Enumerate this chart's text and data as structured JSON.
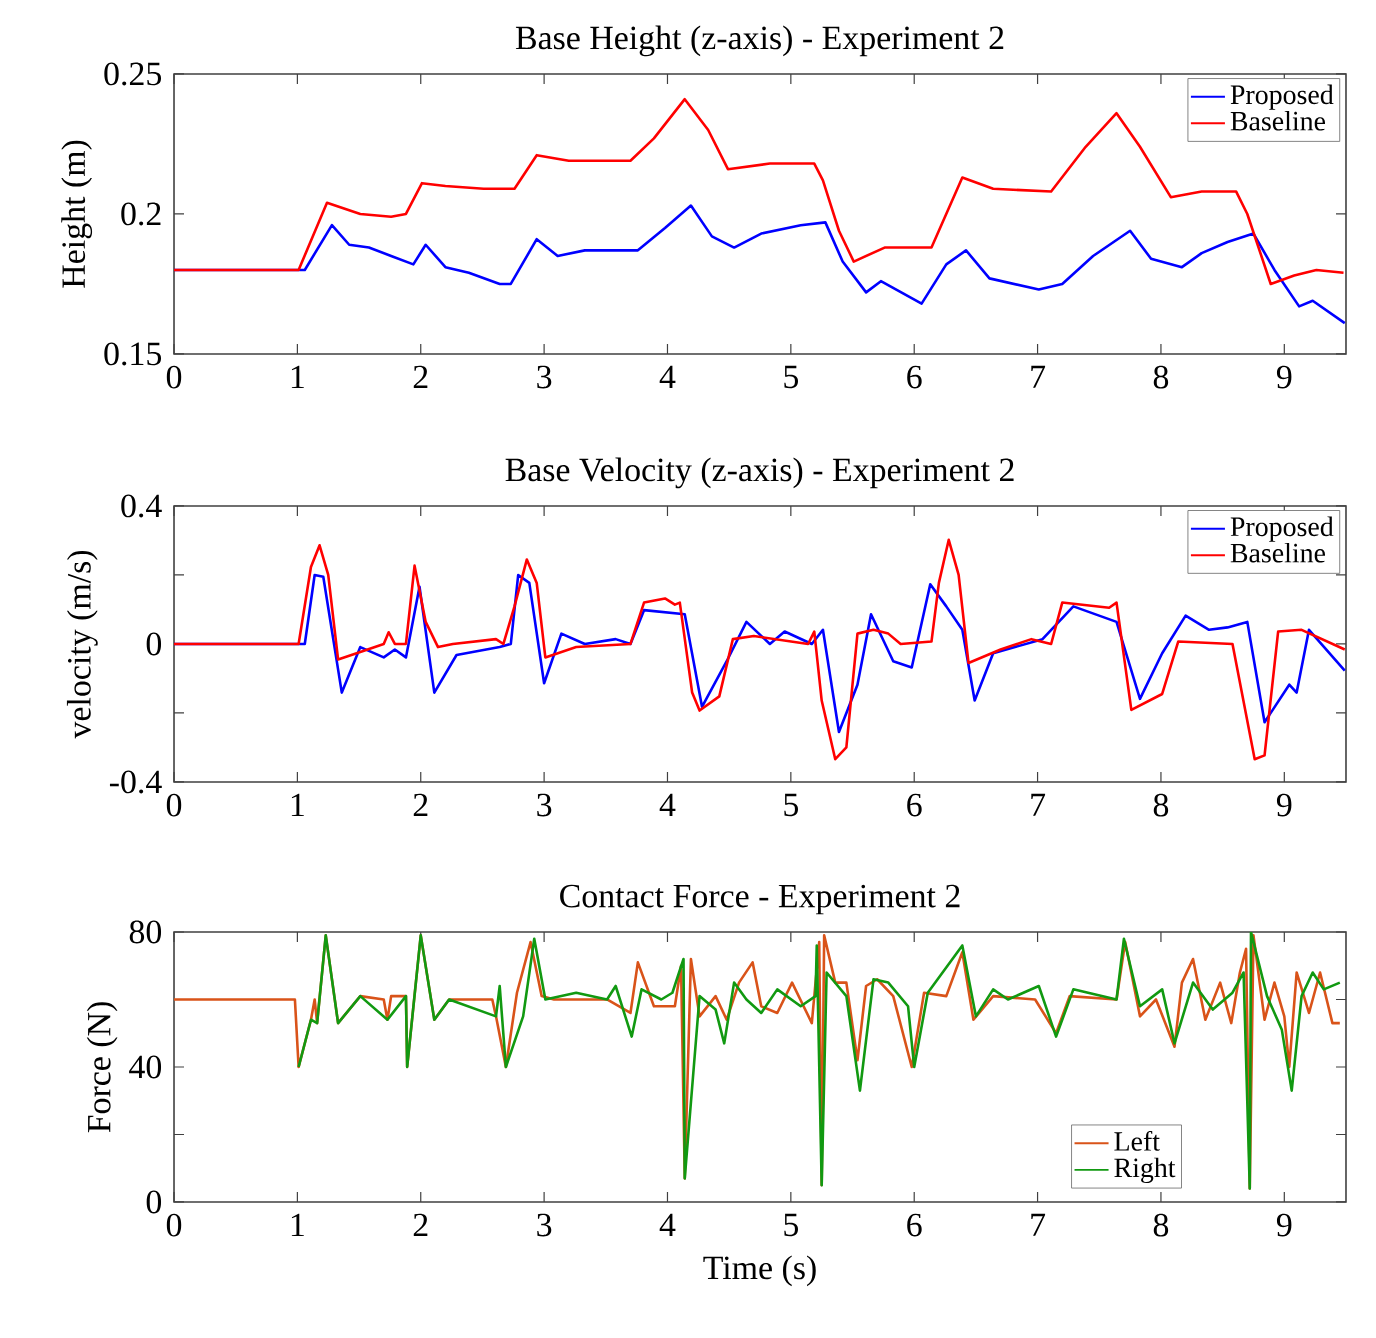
{
  "chart_data": [
    {
      "type": "line",
      "title": "Base Height (z-axis) - Experiment 2",
      "ylabel": "Height (m)",
      "xlim": [
        0,
        9.5
      ],
      "ylim": [
        0.15,
        0.25
      ],
      "xticks": [
        0,
        1,
        2,
        3,
        4,
        5,
        6,
        7,
        8,
        9
      ],
      "yticks": [
        0.15,
        0.2,
        0.25
      ],
      "legend": "top right",
      "grid": false,
      "series": [
        {
          "name": "Proposed",
          "color": "#0000ff",
          "x": [
            0,
            1.06,
            1.28,
            1.42,
            1.58,
            1.76,
            1.94,
            2.04,
            2.2,
            2.39,
            2.64,
            2.73,
            2.94,
            3.11,
            3.33,
            3.76,
            3.98,
            4.19,
            4.36,
            4.54,
            4.76,
            5.08,
            5.28,
            5.42,
            5.61,
            5.73,
            6.06,
            6.26,
            6.42,
            6.61,
            7.01,
            7.2,
            7.45,
            7.75,
            7.92,
            8.17,
            8.33,
            8.54,
            8.75,
            8.92,
            9.12,
            9.23,
            9.49
          ],
          "values": [
            0.18,
            0.18,
            0.196,
            0.189,
            0.188,
            0.185,
            0.182,
            0.189,
            0.181,
            0.179,
            0.175,
            0.175,
            0.191,
            0.185,
            0.187,
            0.187,
            0.195,
            0.203,
            0.192,
            0.188,
            0.193,
            0.196,
            0.197,
            0.183,
            0.172,
            0.176,
            0.168,
            0.182,
            0.187,
            0.177,
            0.173,
            0.175,
            0.185,
            0.194,
            0.184,
            0.181,
            0.186,
            0.19,
            0.193,
            0.18,
            0.167,
            0.169,
            0.161
          ]
        },
        {
          "name": "Baseline",
          "color": "#ff0000",
          "x": [
            0,
            1.01,
            1.24,
            1.51,
            1.76,
            1.88,
            2.01,
            2.2,
            2.51,
            2.76,
            2.94,
            3.2,
            3.7,
            3.89,
            4.14,
            4.33,
            4.49,
            4.83,
            5.19,
            5.26,
            5.39,
            5.51,
            5.76,
            6.14,
            6.39,
            6.64,
            7.11,
            7.39,
            7.64,
            7.83,
            8.08,
            8.33,
            8.61,
            8.7,
            8.89,
            9.08,
            9.26,
            9.48
          ],
          "values": [
            0.18,
            0.18,
            0.204,
            0.2,
            0.199,
            0.2,
            0.211,
            0.21,
            0.209,
            0.209,
            0.221,
            0.219,
            0.219,
            0.227,
            0.241,
            0.23,
            0.216,
            0.218,
            0.218,
            0.212,
            0.194,
            0.183,
            0.188,
            0.188,
            0.213,
            0.209,
            0.208,
            0.224,
            0.236,
            0.224,
            0.206,
            0.208,
            0.208,
            0.2,
            0.175,
            0.178,
            0.18,
            0.179
          ]
        }
      ]
    },
    {
      "type": "line",
      "title": "Base Velocity (z-axis) - Experiment 2",
      "ylabel": "velocity (m/s)",
      "xlim": [
        0,
        9.5
      ],
      "ylim": [
        -0.4,
        0.4
      ],
      "xticks": [
        0,
        1,
        2,
        3,
        4,
        5,
        6,
        7,
        8,
        9
      ],
      "yticks": [
        -0.4,
        {
          "value": -0.2,
          "label": null
        },
        0,
        {
          "value": 0.2,
          "label": null
        },
        0.4
      ],
      "legend": "top right",
      "grid": false,
      "series": [
        {
          "name": "Proposed",
          "color": "#0000ff",
          "x": [
            0,
            1.06,
            1.14,
            1.21,
            1.36,
            1.51,
            1.7,
            1.79,
            1.88,
            1.99,
            2.11,
            2.29,
            2.64,
            2.73,
            2.79,
            2.88,
            3.0,
            3.14,
            3.33,
            3.58,
            3.7,
            3.81,
            4.14,
            4.28,
            4.48,
            4.64,
            4.83,
            4.95,
            5.17,
            5.26,
            5.39,
            5.54,
            5.65,
            5.83,
            5.98,
            6.13,
            6.26,
            6.39,
            6.49,
            6.64,
            7.04,
            7.29,
            7.64,
            7.83,
            8.01,
            8.2,
            8.39,
            8.54,
            8.7,
            8.84,
            9.04,
            9.1,
            9.2,
            9.49
          ],
          "values": [
            0,
            0,
            0.2,
            0.195,
            -0.141,
            -0.009,
            -0.039,
            -0.016,
            -0.039,
            0.166,
            -0.141,
            -0.032,
            -0.009,
            0,
            0.2,
            0.177,
            -0.114,
            0.03,
            0,
            0.014,
            0,
            0.098,
            0.086,
            -0.182,
            -0.05,
            0.064,
            0,
            0.036,
            0,
            0.041,
            -0.255,
            -0.118,
            0.086,
            -0.05,
            -0.068,
            0.173,
            0.109,
            0.041,
            -0.164,
            -0.027,
            0.014,
            0.109,
            0.064,
            -0.159,
            -0.027,
            0.082,
            0.041,
            0.048,
            0.064,
            -0.227,
            -0.118,
            -0.141,
            0.041,
            -0.077
          ]
        },
        {
          "name": "Baseline",
          "color": "#ff0000",
          "x": [
            0,
            1.01,
            1.11,
            1.18,
            1.25,
            1.33,
            1.51,
            1.7,
            1.74,
            1.79,
            1.88,
            1.95,
            2.04,
            2.14,
            2.26,
            2.61,
            2.67,
            2.76,
            2.86,
            2.94,
            3.01,
            3.26,
            3.7,
            3.81,
            3.98,
            4.06,
            4.1,
            4.2,
            4.26,
            4.42,
            4.53,
            4.7,
            5.14,
            5.19,
            5.25,
            5.36,
            5.45,
            5.54,
            5.67,
            5.79,
            5.89,
            6.14,
            6.2,
            6.28,
            6.36,
            6.44,
            6.7,
            6.95,
            7.11,
            7.2,
            7.58,
            7.64,
            7.76,
            8.01,
            8.14,
            8.58,
            8.76,
            8.84,
            8.95,
            9.14,
            9.49
          ],
          "values": [
            0,
            0,
            0.223,
            0.286,
            0.2,
            -0.045,
            -0.023,
            0,
            0.034,
            0,
            0,
            0.227,
            0.064,
            -0.009,
            0,
            0.014,
            0,
            0.109,
            0.245,
            0.177,
            -0.039,
            -0.009,
            0,
            0.12,
            0.132,
            0.114,
            0.12,
            -0.141,
            -0.193,
            -0.152,
            0.014,
            0.023,
            0,
            0.036,
            -0.164,
            -0.334,
            -0.3,
            0.03,
            0.041,
            0.03,
            0,
            0.007,
            0.177,
            0.302,
            0.2,
            -0.055,
            -0.016,
            0.014,
            0,
            0.12,
            0.105,
            0.12,
            -0.191,
            -0.145,
            0.007,
            0,
            -0.334,
            -0.323,
            0.036,
            0.041,
            -0.016
          ]
        }
      ]
    },
    {
      "type": "line",
      "title": "Contact Force - Experiment  2",
      "xlabel": "Time (s)",
      "ylabel": "Force (N)",
      "xlim": [
        0,
        9.5
      ],
      "ylim": [
        0,
        80
      ],
      "xticks": [
        0,
        1,
        2,
        3,
        4,
        5,
        6,
        7,
        8,
        9
      ],
      "yticks": [
        0,
        {
          "value": 20,
          "label": null
        },
        40,
        {
          "value": 60,
          "label": null
        },
        80
      ],
      "legend": "bottom right",
      "grid": false,
      "series": [
        {
          "name": "Left",
          "color": "#d95319",
          "x": [
            0,
            0.98,
            1.01,
            1.11,
            1.14,
            1.16,
            1.23,
            1.33,
            1.51,
            1.7,
            1.73,
            1.76,
            1.88,
            1.89,
            2.0,
            2.11,
            2.23,
            2.58,
            2.61,
            2.69,
            2.78,
            2.89,
            2.98,
            3.08,
            3.51,
            3.7,
            3.76,
            3.89,
            4.06,
            4.11,
            4.14,
            4.19,
            4.26,
            4.39,
            4.48,
            4.58,
            4.69,
            4.76,
            4.89,
            5.01,
            5.17,
            5.23,
            5.25,
            5.27,
            5.36,
            5.45,
            5.54,
            5.61,
            5.7,
            5.83,
            5.98,
            6.08,
            6.26,
            6.39,
            6.48,
            6.64,
            6.98,
            7.15,
            7.26,
            7.64,
            7.71,
            7.83,
            7.96,
            8.11,
            8.17,
            8.26,
            8.36,
            8.48,
            8.57,
            8.64,
            8.69,
            8.72,
            8.75,
            8.84,
            8.92,
            9.0,
            9.04,
            9.1,
            9.2,
            9.29,
            9.39,
            9.45
          ],
          "values": [
            60,
            60,
            40,
            54,
            60,
            53,
            79,
            53,
            61,
            60,
            54,
            61,
            61,
            40,
            79,
            54,
            60,
            60,
            55,
            40,
            62,
            77,
            61,
            60,
            60,
            56,
            71,
            58,
            58,
            70,
            7,
            72,
            55,
            61,
            54,
            65,
            71,
            58,
            56,
            65,
            53,
            77,
            5,
            79,
            65,
            65,
            42,
            64,
            66,
            61,
            40,
            62,
            61,
            74,
            54,
            61,
            60,
            50,
            61,
            60,
            77,
            55,
            60,
            46,
            65,
            72,
            54,
            65,
            53,
            68,
            75,
            4,
            79,
            54,
            65,
            55,
            40,
            68,
            56,
            68,
            53,
            53
          ]
        },
        {
          "name": "Right",
          "color": "#119911",
          "x": [
            1.01,
            1.11,
            1.16,
            1.23,
            1.33,
            1.51,
            1.73,
            1.88,
            1.89,
            2.0,
            2.11,
            2.23,
            2.61,
            2.64,
            2.69,
            2.83,
            2.92,
            3.01,
            3.26,
            3.51,
            3.58,
            3.71,
            3.79,
            3.95,
            4.04,
            4.13,
            4.14,
            4.26,
            4.39,
            4.46,
            4.54,
            4.64,
            4.76,
            4.89,
            5.08,
            5.2,
            5.21,
            5.25,
            5.29,
            5.45,
            5.56,
            5.67,
            5.79,
            5.95,
            6.0,
            6.11,
            6.39,
            6.5,
            6.64,
            6.76,
            7.01,
            7.15,
            7.29,
            7.64,
            7.7,
            7.83,
            8.01,
            8.11,
            8.26,
            8.42,
            8.58,
            8.67,
            8.72,
            8.73,
            8.86,
            8.98,
            9.06,
            9.14,
            9.23,
            9.32,
            9.45
          ],
          "values": [
            40,
            54,
            53,
            79,
            53,
            61,
            54,
            61,
            40,
            79,
            54,
            60,
            55,
            64,
            40,
            55,
            78,
            60,
            62,
            60,
            64,
            49,
            63,
            60,
            62,
            72,
            7,
            61,
            57,
            47,
            65,
            60,
            56,
            63,
            58,
            61,
            76,
            5,
            68,
            61,
            33,
            66,
            65,
            58,
            40,
            62,
            76,
            55,
            63,
            60,
            64,
            49,
            63,
            60,
            78,
            58,
            63,
            47,
            65,
            57,
            62,
            68,
            4,
            80,
            61,
            51,
            33,
            61,
            68,
            63,
            65
          ]
        }
      ]
    }
  ]
}
